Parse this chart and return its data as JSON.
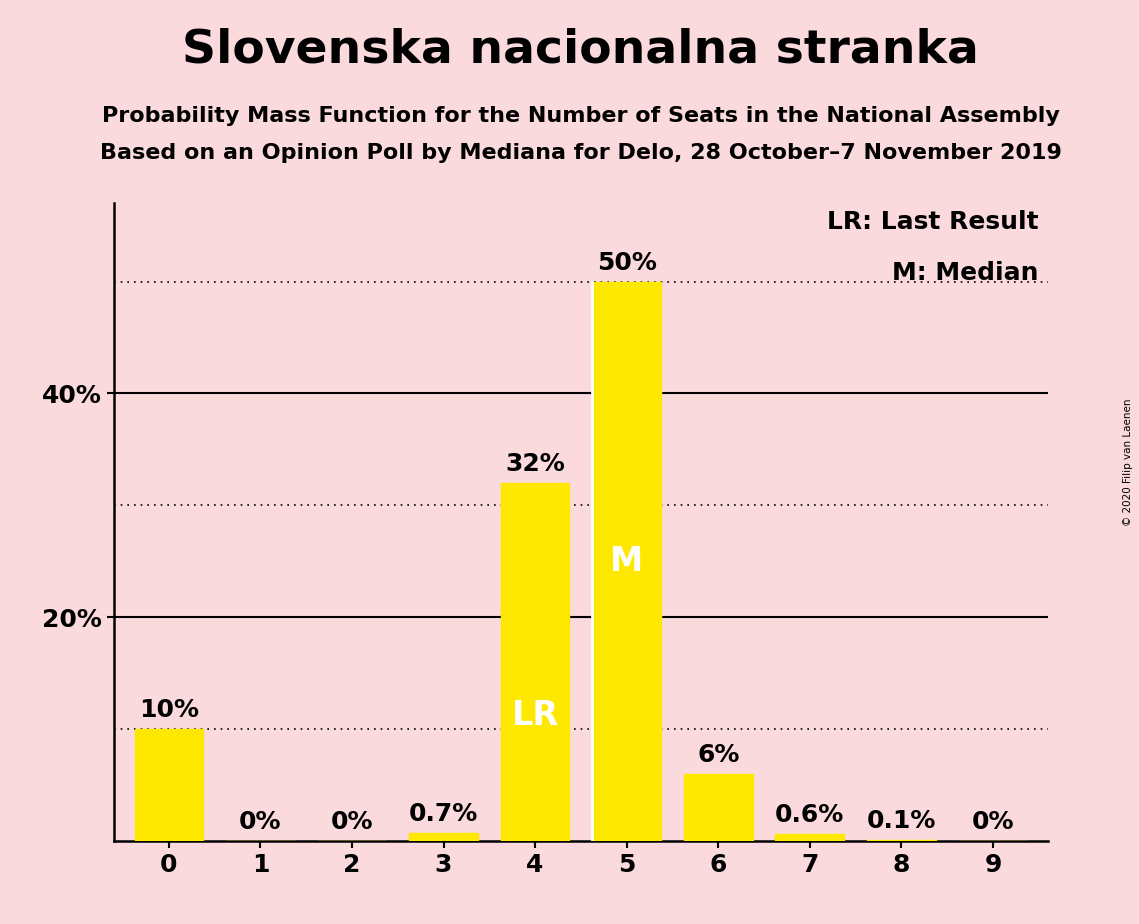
{
  "title": "Slovenska nacionalna stranka",
  "subtitle1": "Probability Mass Function for the Number of Seats in the National Assembly",
  "subtitle2": "Based on an Opinion Poll by Mediana for Delo, 28 October–7 November 2019",
  "copyright": "© 2020 Filip van Laenen",
  "categories": [
    0,
    1,
    2,
    3,
    4,
    5,
    6,
    7,
    8,
    9
  ],
  "values": [
    10.0,
    0.0,
    0.0,
    0.7,
    32.0,
    50.0,
    6.0,
    0.6,
    0.1,
    0.0
  ],
  "bar_color": "#FFE800",
  "background_color": "#FADADD",
  "bar_labels": [
    "10%",
    "0%",
    "0%",
    "0.7%",
    "32%",
    "50%",
    "6%",
    "0.6%",
    "0.1%",
    "0%"
  ],
  "dotted_hlines": [
    10,
    30,
    50
  ],
  "solid_hlines": [
    20,
    40
  ],
  "last_result_bar": 4,
  "median_bar": 5,
  "lr_label": "LR",
  "m_label": "M",
  "legend_lr": "LR: Last Result",
  "legend_m": "M: Median",
  "title_fontsize": 34,
  "subtitle_fontsize": 16,
  "bar_label_fontsize": 18,
  "tick_fontsize": 18,
  "inner_label_fontsize": 24,
  "legend_fontsize": 18,
  "ymax": 57,
  "ytick_positions": [
    20,
    40
  ],
  "ytick_labels": [
    "20%",
    "40%"
  ]
}
